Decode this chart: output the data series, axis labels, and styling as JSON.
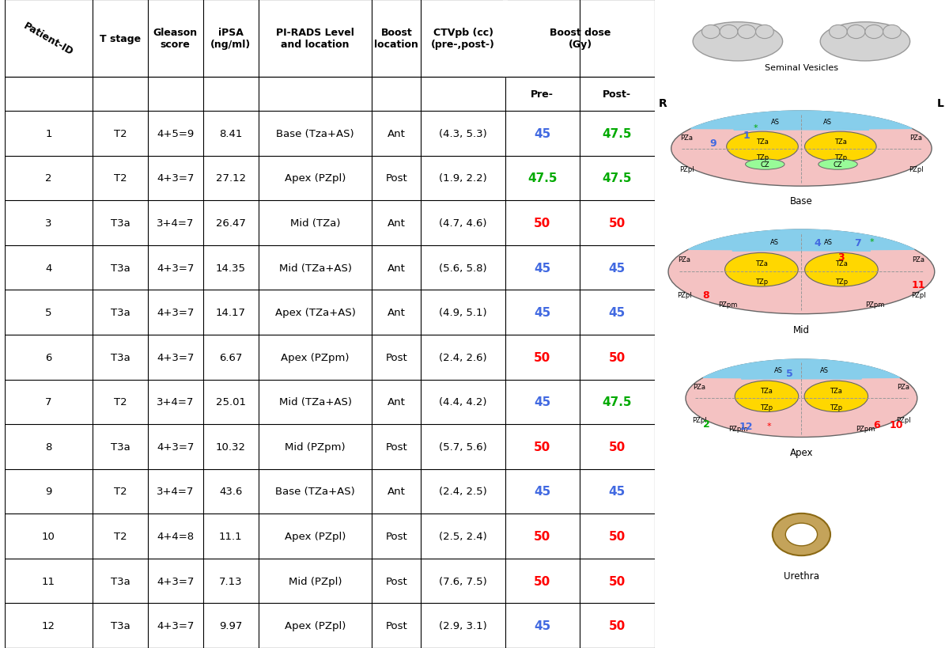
{
  "rows": [
    [
      "1",
      "T2",
      "4+5=9",
      "8.41",
      "Base (Tza+AS)",
      "Ant",
      "(4.3, 5.3)",
      "45",
      "47.5"
    ],
    [
      "2",
      "T2",
      "4+3=7",
      "27.12",
      "Apex (PZpl)",
      "Post",
      "(1.9, 2.2)",
      "47.5",
      "47.5"
    ],
    [
      "3",
      "T3a",
      "3+4=7",
      "26.47",
      "Mid (TZa)",
      "Ant",
      "(4.7, 4.6)",
      "50",
      "50"
    ],
    [
      "4",
      "T3a",
      "4+3=7",
      "14.35",
      "Mid (TZa+AS)",
      "Ant",
      "(5.6, 5.8)",
      "45",
      "45"
    ],
    [
      "5",
      "T3a",
      "4+3=7",
      "14.17",
      "Apex (TZa+AS)",
      "Ant",
      "(4.9, 5.1)",
      "45",
      "45"
    ],
    [
      "6",
      "T3a",
      "4+3=7",
      "6.67",
      "Apex (PZpm)",
      "Post",
      "(2.4, 2.6)",
      "50",
      "50"
    ],
    [
      "7",
      "T2",
      "3+4=7",
      "25.01",
      "Mid (TZa+AS)",
      "Ant",
      "(4.4, 4.2)",
      "45",
      "47.5"
    ],
    [
      "8",
      "T3a",
      "4+3=7",
      "10.32",
      "Mid (PZpm)",
      "Post",
      "(5.7, 5.6)",
      "50",
      "50"
    ],
    [
      "9",
      "T2",
      "3+4=7",
      "43.6",
      "Base (TZa+AS)",
      "Ant",
      "(2.4, 2.5)",
      "45",
      "45"
    ],
    [
      "10",
      "T2",
      "4+4=8",
      "11.1",
      "Apex (PZpl)",
      "Post",
      "(2.5, 2.4)",
      "50",
      "50"
    ],
    [
      "11",
      "T3a",
      "4+3=7",
      "7.13",
      "Mid (PZpl)",
      "Post",
      "(7.6, 7.5)",
      "50",
      "50"
    ],
    [
      "12",
      "T3a",
      "4+3=7",
      "9.97",
      "Apex (PZpl)",
      "Post",
      "(2.9, 3.1)",
      "45",
      "50"
    ]
  ],
  "pre_colors": [
    "#4169E1",
    "#00AA00",
    "#FF0000",
    "#4169E1",
    "#4169E1",
    "#FF0000",
    "#4169E1",
    "#FF0000",
    "#4169E1",
    "#FF0000",
    "#FF0000",
    "#4169E1"
  ],
  "post_colors": [
    "#00AA00",
    "#00AA00",
    "#FF0000",
    "#4169E1",
    "#4169E1",
    "#FF0000",
    "#00AA00",
    "#FF0000",
    "#4169E1",
    "#FF0000",
    "#FF0000",
    "#FF0000"
  ],
  "color_TZa": "#FFD700",
  "color_AS": "#87CEEB",
  "color_PZ": "#F4C2C2",
  "color_CZ": "#98FB98",
  "color_SV": "#D3D3D3",
  "color_urethra_outer": "#C4A35A",
  "color_urethra_inner": "#FFFFFF"
}
